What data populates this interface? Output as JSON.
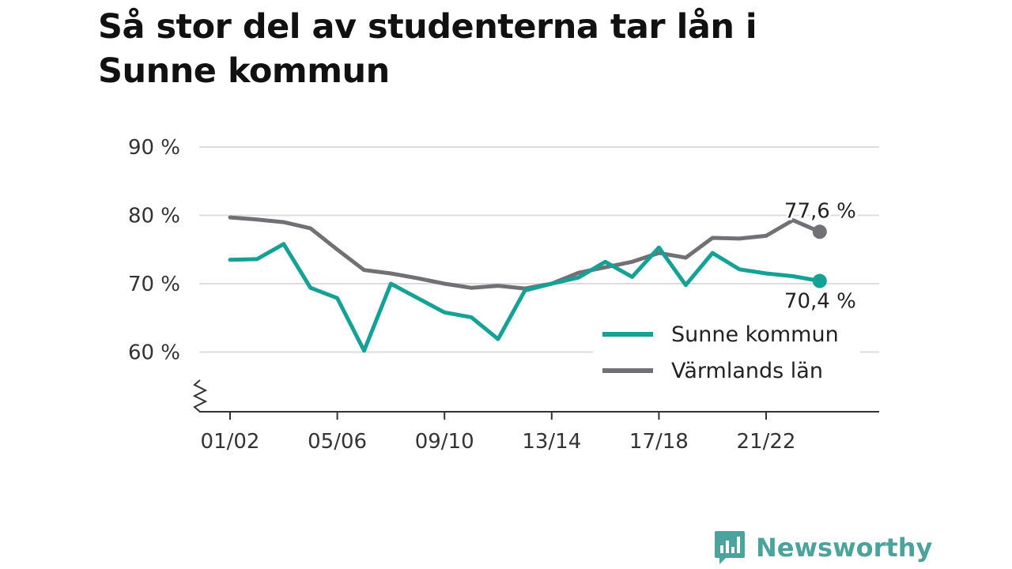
{
  "title": "Så stor del av studenterna tar lån i Sunne kommun",
  "brand": {
    "name": "Newsworthy",
    "icon": "newsworthy-logo-icon",
    "color": "#4aa39c"
  },
  "chart_data": {
    "type": "line",
    "ylim": [
      50,
      90
    ],
    "y_ticks": [
      60,
      70,
      80,
      90
    ],
    "y_tick_labels": [
      "60 %",
      "70 %",
      "80 %",
      "90 %"
    ],
    "y_axis_break": true,
    "x_tick_labels": [
      "01/02",
      "05/06",
      "09/10",
      "13/14",
      "17/18",
      "21/22"
    ],
    "x_tick_indices": [
      0,
      4,
      8,
      12,
      16,
      20
    ],
    "categories": [
      "01/02",
      "02/03",
      "03/04",
      "04/05",
      "05/06",
      "06/07",
      "07/08",
      "08/09",
      "09/10",
      "10/11",
      "11/12",
      "12/13",
      "13/14",
      "14/15",
      "15/16",
      "16/17",
      "17/18",
      "18/19",
      "19/20",
      "20/21",
      "21/22",
      "22/23",
      "23/24"
    ],
    "grid": true,
    "legend_position": "bottom-right",
    "series": [
      {
        "name": "Sunne kommun",
        "color": "#14a196",
        "values": [
          73.5,
          73.6,
          75.8,
          69.4,
          67.9,
          60.2,
          70.0,
          67.9,
          65.8,
          65.1,
          61.9,
          69.0,
          70.0,
          70.9,
          73.2,
          71.0,
          75.3,
          69.8,
          74.5,
          72.1,
          71.5,
          71.1,
          70.4
        ],
        "end_label": "70,4 %"
      },
      {
        "name": "Värmlands län",
        "color": "#707075",
        "values": [
          79.7,
          79.4,
          79.0,
          78.1,
          75.0,
          72.0,
          71.5,
          70.8,
          70.0,
          69.4,
          69.7,
          69.3,
          70.0,
          71.6,
          72.4,
          73.2,
          74.5,
          73.8,
          76.7,
          76.6,
          77.0,
          79.3,
          77.6
        ],
        "end_label": "77,6 %"
      }
    ]
  }
}
